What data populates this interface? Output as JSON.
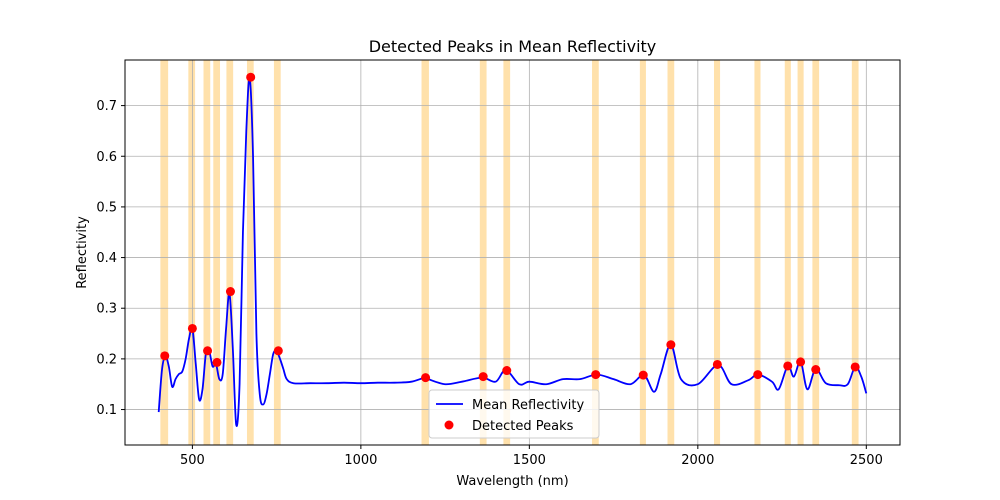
{
  "chart_data": {
    "type": "line",
    "title": "Detected Peaks in Mean Reflectivity",
    "xlabel": "Wavelength (nm)",
    "ylabel": "Reflectivity",
    "xlim": [
      300,
      2600
    ],
    "ylim": [
      0.03,
      0.79
    ],
    "xticks": [
      500,
      1000,
      1500,
      2000,
      2500
    ],
    "yticks": [
      0.1,
      0.2,
      0.3,
      0.4,
      0.5,
      0.6,
      0.7
    ],
    "xtick_labels": [
      "500",
      "1000",
      "1500",
      "2000",
      "2500"
    ],
    "ytick_labels": [
      "0.1",
      "0.2",
      "0.3",
      "0.4",
      "0.5",
      "0.6",
      "0.7"
    ],
    "grid": true,
    "legend_position": "lower-center",
    "colors": {
      "line": "#0000ff",
      "peaks": "#ff0000",
      "bands": "#ffa500",
      "grid": "#b0b0b0"
    },
    "series": [
      {
        "name": "Mean Reflectivity",
        "kind": "line",
        "x": [
          400,
          410,
          420,
          430,
          440,
          450,
          460,
          470,
          480,
          490,
          500,
          510,
          520,
          530,
          540,
          550,
          560,
          570,
          580,
          590,
          600,
          610,
          620,
          630,
          640,
          650,
          660,
          670,
          680,
          690,
          700,
          710,
          720,
          730,
          740,
          750,
          760,
          770,
          780,
          800,
          850,
          900,
          950,
          1000,
          1050,
          1100,
          1150,
          1190,
          1200,
          1250,
          1300,
          1360,
          1400,
          1430,
          1470,
          1500,
          1550,
          1600,
          1650,
          1700,
          1750,
          1800,
          1840,
          1870,
          1890,
          1920,
          1950,
          2000,
          2060,
          2100,
          2150,
          2178,
          2220,
          2240,
          2267,
          2285,
          2305,
          2325,
          2350,
          2380,
          2420,
          2445,
          2467,
          2485,
          2500
        ],
        "y": [
          0.095,
          0.18,
          0.205,
          0.185,
          0.145,
          0.16,
          0.17,
          0.175,
          0.2,
          0.24,
          0.26,
          0.19,
          0.12,
          0.14,
          0.21,
          0.215,
          0.185,
          0.19,
          0.16,
          0.17,
          0.26,
          0.33,
          0.22,
          0.07,
          0.15,
          0.45,
          0.65,
          0.755,
          0.6,
          0.25,
          0.13,
          0.11,
          0.13,
          0.17,
          0.21,
          0.215,
          0.2,
          0.18,
          0.16,
          0.152,
          0.152,
          0.152,
          0.153,
          0.152,
          0.153,
          0.153,
          0.155,
          0.163,
          0.16,
          0.15,
          0.155,
          0.163,
          0.155,
          0.178,
          0.15,
          0.155,
          0.15,
          0.16,
          0.16,
          0.169,
          0.16,
          0.15,
          0.168,
          0.135,
          0.17,
          0.228,
          0.16,
          0.15,
          0.188,
          0.15,
          0.158,
          0.169,
          0.155,
          0.14,
          0.186,
          0.165,
          0.195,
          0.14,
          0.18,
          0.152,
          0.148,
          0.15,
          0.184,
          0.165,
          0.132
        ]
      },
      {
        "name": "Detected Peaks",
        "kind": "scatter",
        "x": [
          418,
          500,
          545,
          573,
          613,
          673,
          755,
          1192,
          1363,
          1433,
          1697,
          1838,
          1920,
          2058,
          2178,
          2267,
          2305,
          2350,
          2467
        ],
        "y": [
          0.206,
          0.26,
          0.216,
          0.193,
          0.333,
          0.756,
          0.216,
          0.163,
          0.165,
          0.177,
          0.169,
          0.168,
          0.228,
          0.189,
          0.169,
          0.186,
          0.194,
          0.179,
          0.184
        ]
      }
    ],
    "bands": [
      [
        405,
        428
      ],
      [
        488,
        508
      ],
      [
        533,
        553
      ],
      [
        562,
        582
      ],
      [
        601,
        621
      ],
      [
        662,
        682
      ],
      [
        742,
        762
      ],
      [
        1180,
        1202
      ],
      [
        1353,
        1373
      ],
      [
        1423,
        1443
      ],
      [
        1686,
        1706
      ],
      [
        1828,
        1846
      ],
      [
        1910,
        1930
      ],
      [
        2048,
        2066
      ],
      [
        2168,
        2186
      ],
      [
        2258,
        2276
      ],
      [
        2296,
        2314
      ],
      [
        2340,
        2360
      ],
      [
        2457,
        2477
      ]
    ]
  }
}
